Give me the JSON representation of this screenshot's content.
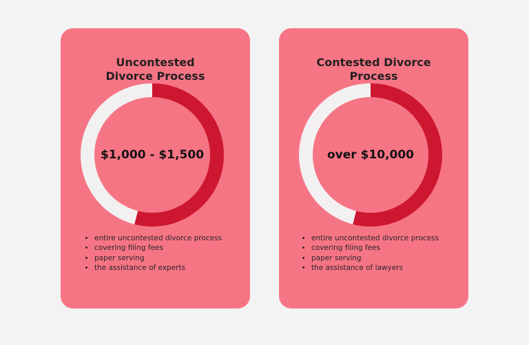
{
  "chart_data": [
    {
      "type": "pie",
      "title_lines": [
        "Uncontested",
        "Divorce Process"
      ],
      "center_label": "$1,000 - $1,500",
      "slices": [
        {
          "value": 54,
          "color": "#cd1731"
        },
        {
          "value": 46,
          "color": "#f3f0f1"
        }
      ],
      "bullets": [
        "entire uncontested divorce process",
        "covering filing fees",
        "paper serving",
        "the assistance of experts"
      ]
    },
    {
      "type": "pie",
      "title_lines": [
        "Contested Divorce",
        "Process"
      ],
      "center_label": "over $10,000",
      "slices": [
        {
          "value": 54,
          "color": "#cd1731"
        },
        {
          "value": 46,
          "color": "#f3f0f1"
        }
      ],
      "bullets": [
        "entire uncontested divorce process",
        "covering filing fees",
        "paper serving",
        "the assistance of lawyers"
      ]
    }
  ],
  "colors": {
    "background": "#f3f3f4",
    "card": "#f67585",
    "title": "#241f21"
  }
}
